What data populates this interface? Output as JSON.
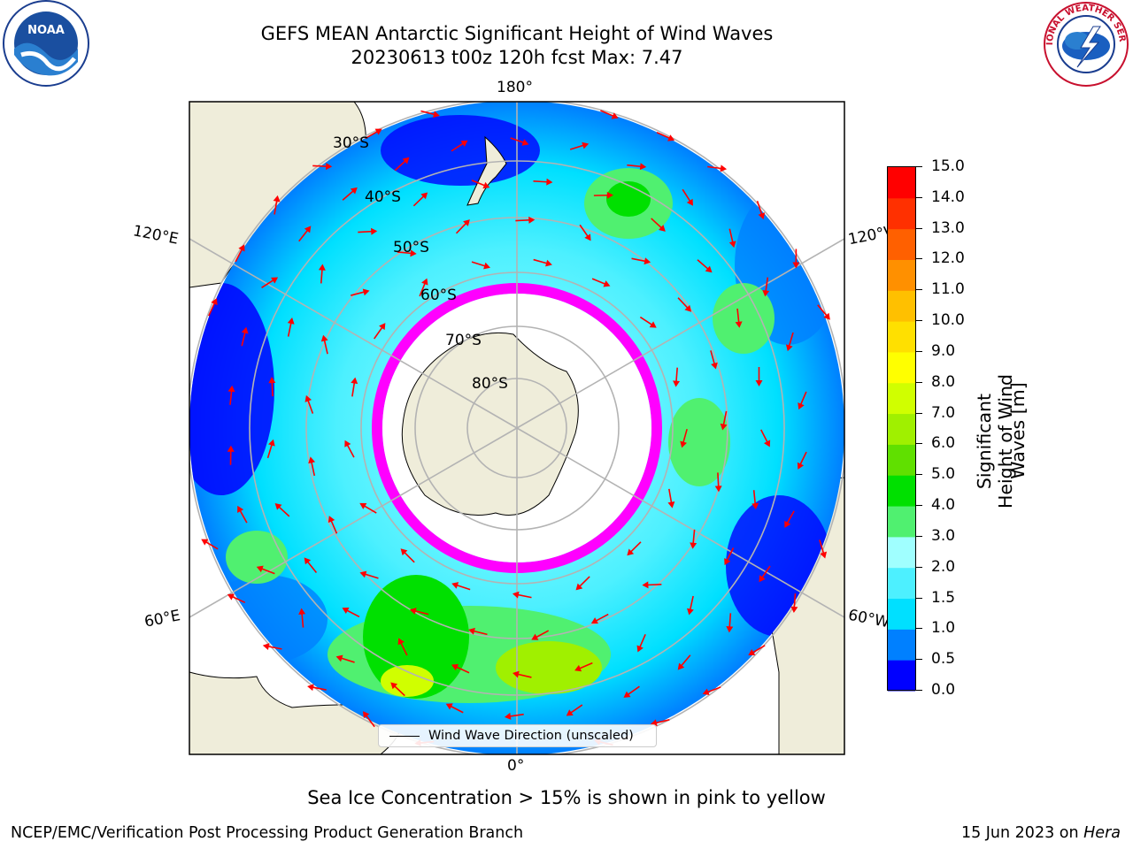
{
  "title_line1": "GEFS MEAN Antarctic Significant Height of Wind Waves",
  "title_line2": "20230613 t00z 120h fcst   Max: 7.47",
  "caption": "Sea Ice Concentration > 15% is shown in pink to yellow",
  "footer_left": "NCEP/EMC/Verification Post Processing Product Generation Branch",
  "footer_right_date": "15 Jun 2023 on ",
  "footer_right_host": "Hera",
  "legend_label": "Wind Wave Direction (unscaled)",
  "colorbar": {
    "label_line1": "Significant Height of Wind",
    "label_line2": "Waves [m]",
    "ticks": [
      "0.0",
      "0.5",
      "1.0",
      "1.5",
      "2.0",
      "3.0",
      "4.0",
      "5.0",
      "6.0",
      "7.0",
      "8.0",
      "9.0",
      "10.0",
      "11.0",
      "12.0",
      "13.0",
      "14.0",
      "15.0"
    ],
    "colors": [
      "#0000ff",
      "#0080ff",
      "#00e0ff",
      "#4df0ff",
      "#a0ffff",
      "#50f070",
      "#00e000",
      "#60e000",
      "#a0f000",
      "#d0ff00",
      "#ffff00",
      "#ffe000",
      "#ffc000",
      "#ff9000",
      "#ff6000",
      "#ff3000",
      "#ff0000"
    ]
  },
  "longitude_labels": [
    "180°",
    "120°E",
    "120°W",
    "60°E",
    "60°W",
    "0°"
  ],
  "latitude_labels": [
    "30°S",
    "40°S",
    "50°S",
    "60°S",
    "70°S",
    "80°S"
  ],
  "logos": {
    "left": "NOAA",
    "right": "NATIONAL WEATHER SERVICE"
  },
  "colors": {
    "land": "#efedda",
    "ice": "#ffffff",
    "arrow": "#ff0000",
    "grid": "#b3b3b3"
  }
}
